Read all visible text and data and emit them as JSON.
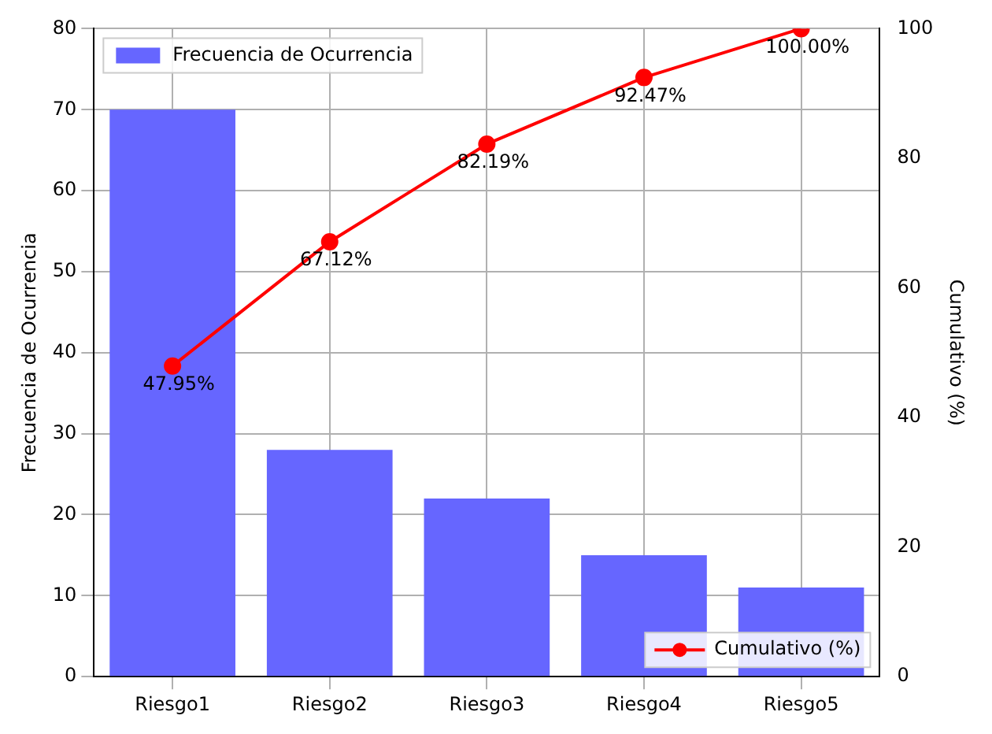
{
  "chart_data": {
    "type": "bar",
    "categories": [
      "Riesgo1",
      "Riesgo2",
      "Riesgo3",
      "Riesgo4",
      "Riesgo5"
    ],
    "ylabel": "Frecuencia de Ocurrencia",
    "y2label": "Cumulativo (%)",
    "series": [
      {
        "name": "Frecuencia de Ocurrencia",
        "color": "#6666ff",
        "values": [
          70,
          28,
          22,
          15,
          11
        ]
      },
      {
        "name": "Cumulativo (%)",
        "type": "line",
        "axis": "y2",
        "color": "#ff0000",
        "marker": "circle",
        "values": [
          47.95,
          67.12,
          82.19,
          92.47,
          100.0
        ],
        "value_labels": [
          "47.95%",
          "67.12%",
          "82.19%",
          "92.47%",
          "100.00%"
        ]
      }
    ],
    "ylim": [
      0,
      80
    ],
    "yticks": [
      0,
      10,
      20,
      30,
      40,
      50,
      60,
      70,
      80
    ],
    "y2lim": [
      0,
      100
    ],
    "y2ticks": [
      0,
      20,
      40,
      60,
      80,
      100
    ],
    "grid": true,
    "legend": "top left"
  }
}
